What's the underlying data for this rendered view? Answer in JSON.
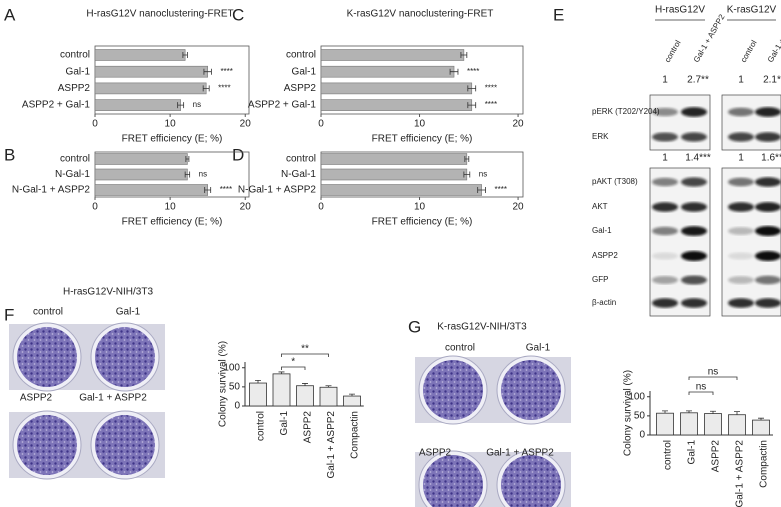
{
  "panel_letters": [
    "A",
    "B",
    "C",
    "D",
    "E",
    "F",
    "G"
  ],
  "chart_data": [
    {
      "type": "hbar",
      "title": "H-rasG12V nanoclustering-FRET",
      "categories": [
        "control",
        "Gal-1",
        "ASPP2",
        "ASPP2 + Gal-1"
      ],
      "values": [
        12,
        15,
        14.8,
        11.4
      ],
      "errors": [
        0.3,
        0.5,
        0.4,
        0.4
      ],
      "annotations": [
        null,
        "****",
        "****",
        "ns"
      ],
      "color": "#b3b3b3",
      "xlim": [
        0,
        20.5
      ],
      "xticks": [
        0,
        10,
        20
      ],
      "xlabel": "FRET efficiency (E; %)"
    },
    {
      "type": "hbar",
      "categories": [
        "control",
        "N-Gal-1",
        "N-Gal-1 + ASPP2"
      ],
      "values": [
        12.3,
        12.3,
        15
      ],
      "errors": [
        0.2,
        0.3,
        0.4
      ],
      "annotations": [
        null,
        "ns",
        "****"
      ],
      "color": "#b3b3b3",
      "xlim": [
        0,
        20.5
      ],
      "xticks": [
        0,
        10,
        20
      ],
      "xlabel": "FRET efficiency (E; %)"
    },
    {
      "type": "hbar",
      "title": "K-rasG12V nanoclustering-FRET",
      "categories": [
        "control",
        "Gal-1",
        "ASPP2",
        "ASPP2 + Gal-1"
      ],
      "values": [
        14.5,
        13.5,
        15.3,
        15.3
      ],
      "errors": [
        0.3,
        0.4,
        0.4,
        0.4
      ],
      "annotations": [
        null,
        "****",
        "****",
        "****"
      ],
      "color": "#b3b3b3",
      "xlim": [
        0,
        20.5
      ],
      "xticks": [
        0,
        10,
        20
      ],
      "xlabel": "FRET efficiency (E; %)"
    },
    {
      "type": "hbar",
      "categories": [
        "control",
        "N-Gal-1",
        "N-Gal-1 + ASPP2"
      ],
      "values": [
        14.8,
        14.8,
        16.3
      ],
      "errors": [
        0.2,
        0.3,
        0.4
      ],
      "annotations": [
        null,
        "ns",
        "****"
      ],
      "color": "#b3b3b3",
      "xlim": [
        0,
        20.5
      ],
      "xticks": [
        0,
        10,
        20
      ],
      "xlabel": "FRET efficiency (E; %)"
    },
    {
      "type": "bar",
      "categories": [
        "control",
        "Gal-1",
        "ASPP2",
        "Gal-1 + ASPP2",
        "Compactin"
      ],
      "values": [
        60,
        84,
        53,
        49,
        26
      ],
      "errors": [
        7,
        5,
        6,
        4,
        5
      ],
      "color": "#ebebeb",
      "ylabel": "Colony survival (%)",
      "ylim": [
        0,
        115
      ],
      "yticks": [
        0,
        50,
        100
      ],
      "brackets": [
        {
          "label": "*",
          "categories": [
            "Gal-1",
            "ASPP2"
          ]
        },
        {
          "label": "**",
          "categories": [
            "Gal-1",
            "Gal-1 + ASPP2"
          ]
        }
      ]
    },
    {
      "type": "bar",
      "categories": [
        "control",
        "Gal-1",
        "ASPP2",
        "Gal-1 + ASPP2",
        "Compactin"
      ],
      "values": [
        57,
        58,
        56,
        53,
        39
      ],
      "errors": [
        6,
        5,
        6,
        8,
        5
      ],
      "color": "#ebebeb",
      "ylabel": "Colony survival (%)",
      "ylim": [
        0,
        115
      ],
      "yticks": [
        0,
        50,
        100
      ],
      "brackets": [
        {
          "label": "ns",
          "categories": [
            "Gal-1",
            "ASPP2"
          ]
        },
        {
          "label": "ns",
          "categories": [
            "Gal-1",
            "Gal-1 + ASPP2"
          ]
        }
      ]
    }
  ],
  "blot": {
    "headers": [
      "H-rasG12V",
      "K-rasG12V"
    ],
    "lanes": [
      "control",
      "Gal-1 + ASPP2"
    ],
    "quantification": [
      [
        "1",
        "2.7**"
      ],
      [
        "1",
        "2.1*"
      ],
      [
        "1",
        "1.4***"
      ],
      [
        "1",
        "1.6**"
      ]
    ],
    "rows": [
      "pERK (T202/Y204)",
      "ERK",
      "pAKT (T308)",
      "AKT",
      "Gal-1",
      "ASPP2",
      "GFP",
      "β-actin"
    ]
  },
  "colony_assays": [
    {
      "title": "H-rasG12V-NIH/3T3",
      "labels": [
        "control",
        "Gal-1",
        "ASPP2",
        "Gal-1 + ASPP2"
      ]
    },
    {
      "title": "K-rasG12V-NIH/3T3",
      "labels": [
        "control",
        "Gal-1",
        "ASPP2",
        "Gal-1 + ASPP2"
      ]
    }
  ]
}
